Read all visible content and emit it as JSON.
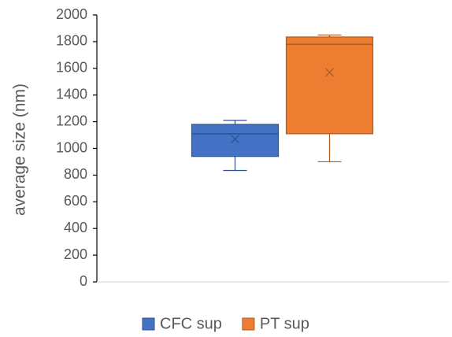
{
  "chart_data": {
    "type": "box",
    "y_label": "average size (nm)",
    "ylim": [
      0,
      2000
    ],
    "yticks": [
      0,
      200,
      400,
      600,
      800,
      1000,
      1200,
      1400,
      1600,
      1800,
      2000
    ],
    "legend": "bottom",
    "series": [
      {
        "name": "CFC sup",
        "color": "#4472c4",
        "min": 835,
        "q1": 940,
        "median": 1110,
        "q3": 1180,
        "max": 1210,
        "mean": 1070
      },
      {
        "name": "PT sup",
        "color": "#ed7d31",
        "min": 900,
        "q1": 1110,
        "median": 1780,
        "q3": 1835,
        "max": 1850,
        "mean": 1570
      }
    ]
  }
}
